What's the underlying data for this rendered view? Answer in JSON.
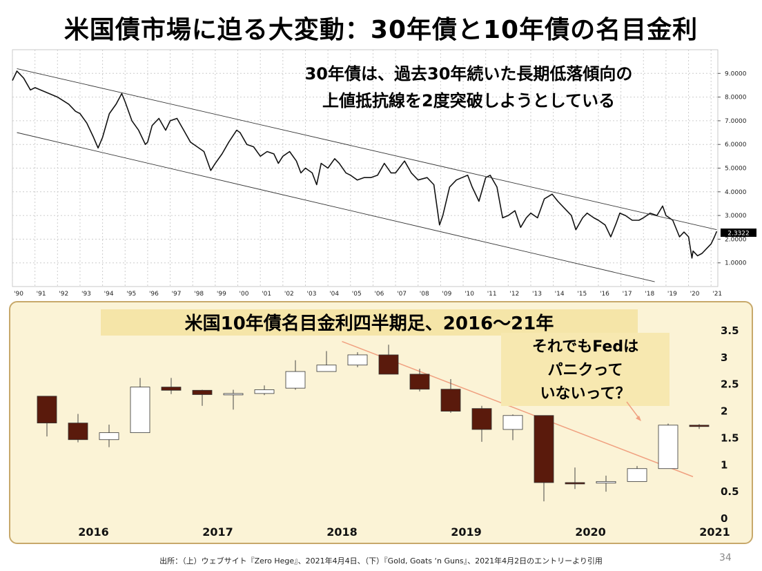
{
  "slide": {
    "title": "米国債市場に迫る大変動：30年債と10年債の名目金利",
    "footer": "出所：（上）ウェブサイト『Zero Hege』、2021年4月4日、（下）『Gold, Goats ‘n Guns』、2021年4月2日のエントリーより引用",
    "page_number": "34",
    "colors": {
      "bear": "#5a1a0c",
      "bull": "#ffffff",
      "panel_bg": "#fbf3d6",
      "panel_border": "#c7a86a",
      "trend": "#f0a080",
      "note_bg": "#f7e8b0",
      "label_bg": "#000000"
    }
  },
  "chart_data": [
    {
      "type": "line",
      "annotation": [
        "30年債は、過去30年続いた長期低落傾向の",
        "上値抵抗線を2度突破しようとしている"
      ],
      "x_ticks": [
        "'90",
        "'91",
        "'92",
        "'93",
        "'94",
        "'95",
        "'96",
        "'97",
        "'98",
        "'99",
        "'00",
        "'01",
        "'02",
        "'03",
        "'04",
        "'05",
        "'06",
        "'07",
        "'08",
        "'09",
        "'10",
        "'11",
        "'12",
        "'13",
        "'14",
        "'15",
        "'16",
        "'17",
        "'18",
        "'19",
        "'20",
        "'21"
      ],
      "y_ticks": [
        "1.0000",
        "2.0000",
        "3.0000",
        "4.0000",
        "5.0000",
        "6.0000",
        "7.0000",
        "8.0000",
        "9.0000"
      ],
      "ylim": [
        0,
        10
      ],
      "xlim": [
        1990.0,
        2021.3
      ],
      "last_value_label": "2.3322",
      "series": [
        {
          "points": [
            [
              1990.0,
              8.7
            ],
            [
              1990.2,
              9.1
            ],
            [
              1990.5,
              8.8
            ],
            [
              1990.8,
              8.3
            ],
            [
              1991.0,
              8.4
            ],
            [
              1991.5,
              8.2
            ],
            [
              1992.0,
              8.0
            ],
            [
              1992.5,
              7.7
            ],
            [
              1992.8,
              7.4
            ],
            [
              1993.0,
              7.3
            ],
            [
              1993.3,
              6.9
            ],
            [
              1993.6,
              6.3
            ],
            [
              1993.8,
              5.85
            ],
            [
              1994.0,
              6.3
            ],
            [
              1994.3,
              7.3
            ],
            [
              1994.6,
              7.7
            ],
            [
              1994.85,
              8.15
            ],
            [
              1995.0,
              7.8
            ],
            [
              1995.3,
              7.0
            ],
            [
              1995.6,
              6.6
            ],
            [
              1995.9,
              6.0
            ],
            [
              1996.0,
              6.1
            ],
            [
              1996.2,
              6.8
            ],
            [
              1996.5,
              7.1
            ],
            [
              1996.8,
              6.6
            ],
            [
              1997.0,
              7.0
            ],
            [
              1997.3,
              7.1
            ],
            [
              1997.6,
              6.6
            ],
            [
              1997.9,
              6.1
            ],
            [
              1998.2,
              5.9
            ],
            [
              1998.5,
              5.7
            ],
            [
              1998.8,
              4.9
            ],
            [
              1999.0,
              5.2
            ],
            [
              1999.3,
              5.6
            ],
            [
              1999.6,
              6.1
            ],
            [
              1999.95,
              6.6
            ],
            [
              2000.1,
              6.5
            ],
            [
              2000.4,
              6.0
            ],
            [
              2000.7,
              5.9
            ],
            [
              2001.0,
              5.5
            ],
            [
              2001.3,
              5.7
            ],
            [
              2001.6,
              5.6
            ],
            [
              2001.8,
              5.2
            ],
            [
              2002.0,
              5.5
            ],
            [
              2002.3,
              5.7
            ],
            [
              2002.6,
              5.3
            ],
            [
              2002.8,
              4.8
            ],
            [
              2003.0,
              5.0
            ],
            [
              2003.3,
              4.8
            ],
            [
              2003.5,
              4.3
            ],
            [
              2003.7,
              5.2
            ],
            [
              2004.0,
              5.0
            ],
            [
              2004.3,
              5.4
            ],
            [
              2004.5,
              5.2
            ],
            [
              2004.8,
              4.8
            ],
            [
              2005.0,
              4.7
            ],
            [
              2005.3,
              4.5
            ],
            [
              2005.6,
              4.6
            ],
            [
              2005.9,
              4.6
            ],
            [
              2006.2,
              4.7
            ],
            [
              2006.5,
              5.2
            ],
            [
              2006.8,
              4.8
            ],
            [
              2007.0,
              4.8
            ],
            [
              2007.4,
              5.3
            ],
            [
              2007.7,
              4.8
            ],
            [
              2008.0,
              4.5
            ],
            [
              2008.4,
              4.6
            ],
            [
              2008.7,
              4.3
            ],
            [
              2008.95,
              2.6
            ],
            [
              2009.1,
              3.0
            ],
            [
              2009.4,
              4.2
            ],
            [
              2009.7,
              4.5
            ],
            [
              2009.95,
              4.6
            ],
            [
              2010.2,
              4.7
            ],
            [
              2010.4,
              4.2
            ],
            [
              2010.7,
              3.6
            ],
            [
              2011.0,
              4.6
            ],
            [
              2011.2,
              4.7
            ],
            [
              2011.5,
              4.2
            ],
            [
              2011.75,
              2.9
            ],
            [
              2012.0,
              3.0
            ],
            [
              2012.3,
              3.2
            ],
            [
              2012.55,
              2.5
            ],
            [
              2012.8,
              2.9
            ],
            [
              2013.0,
              3.1
            ],
            [
              2013.3,
              2.9
            ],
            [
              2013.6,
              3.7
            ],
            [
              2013.95,
              3.9
            ],
            [
              2014.2,
              3.6
            ],
            [
              2014.5,
              3.3
            ],
            [
              2014.8,
              3.0
            ],
            [
              2015.0,
              2.4
            ],
            [
              2015.3,
              2.9
            ],
            [
              2015.5,
              3.1
            ],
            [
              2015.8,
              2.9
            ],
            [
              2016.0,
              2.8
            ],
            [
              2016.3,
              2.6
            ],
            [
              2016.55,
              2.1
            ],
            [
              2016.8,
              2.7
            ],
            [
              2016.95,
              3.1
            ],
            [
              2017.2,
              3.0
            ],
            [
              2017.5,
              2.8
            ],
            [
              2017.8,
              2.8
            ],
            [
              2018.0,
              2.9
            ],
            [
              2018.3,
              3.1
            ],
            [
              2018.6,
              3.0
            ],
            [
              2018.85,
              3.4
            ],
            [
              2019.0,
              3.0
            ],
            [
              2019.3,
              2.8
            ],
            [
              2019.6,
              2.1
            ],
            [
              2019.8,
              2.3
            ],
            [
              2020.0,
              2.1
            ],
            [
              2020.15,
              1.2
            ],
            [
              2020.2,
              1.5
            ],
            [
              2020.4,
              1.3
            ],
            [
              2020.6,
              1.4
            ],
            [
              2020.8,
              1.6
            ],
            [
              2021.0,
              1.8
            ],
            [
              2021.15,
              2.1
            ],
            [
              2021.25,
              2.33
            ]
          ]
        },
        {
          "points": [
            [
              1990.2,
              9.2
            ],
            [
              2021.25,
              2.4
            ]
          ]
        },
        {
          "points": [
            [
              1990.2,
              6.5
            ],
            [
              2018.5,
              0.2
            ]
          ]
        }
      ]
    },
    {
      "type": "candlestick",
      "title": "米国10年債名目金利四半期足、2016～21年",
      "note": [
        "それでもFedは",
        "パニクって",
        "いないって？"
      ],
      "x_labels": [
        "2016",
        "2017",
        "2018",
        "2019",
        "2020",
        "2021"
      ],
      "y_ticks": [
        "0",
        "0.5",
        "1",
        "1.5",
        "2",
        "2.5",
        "3",
        "3.5"
      ],
      "ylim": [
        0,
        3.5
      ],
      "candles": [
        {
          "q": "2016Q1",
          "open": 2.28,
          "high": 2.28,
          "low": 1.53,
          "close": 1.78
        },
        {
          "q": "2016Q2",
          "open": 1.78,
          "high": 1.95,
          "low": 1.42,
          "close": 1.47
        },
        {
          "q": "2016Q3",
          "open": 1.47,
          "high": 1.75,
          "low": 1.33,
          "close": 1.6
        },
        {
          "q": "2016Q4",
          "open": 1.6,
          "high": 2.62,
          "low": 1.6,
          "close": 2.45
        },
        {
          "q": "2017Q1",
          "open": 2.45,
          "high": 2.62,
          "low": 2.32,
          "close": 2.39
        },
        {
          "q": "2017Q2",
          "open": 2.39,
          "high": 2.4,
          "low": 2.1,
          "close": 2.31
        },
        {
          "q": "2017Q3",
          "open": 2.31,
          "high": 2.4,
          "low": 2.03,
          "close": 2.33
        },
        {
          "q": "2017Q4",
          "open": 2.33,
          "high": 2.48,
          "low": 2.3,
          "close": 2.4
        },
        {
          "q": "2018Q1",
          "open": 2.43,
          "high": 2.95,
          "low": 2.4,
          "close": 2.74
        },
        {
          "q": "2018Q2",
          "open": 2.74,
          "high": 3.12,
          "low": 2.74,
          "close": 2.86
        },
        {
          "q": "2018Q3",
          "open": 2.86,
          "high": 3.1,
          "low": 2.82,
          "close": 3.05
        },
        {
          "q": "2018Q4",
          "open": 3.05,
          "high": 3.24,
          "low": 2.69,
          "close": 2.69
        },
        {
          "q": "2019Q1",
          "open": 2.69,
          "high": 2.79,
          "low": 2.37,
          "close": 2.41
        },
        {
          "q": "2019Q2",
          "open": 2.41,
          "high": 2.6,
          "low": 1.97,
          "close": 2.0
        },
        {
          "q": "2019Q3",
          "open": 2.05,
          "high": 2.1,
          "low": 1.43,
          "close": 1.66
        },
        {
          "q": "2019Q4",
          "open": 1.66,
          "high": 1.94,
          "low": 1.46,
          "close": 1.92
        },
        {
          "q": "2020Q1",
          "open": 1.92,
          "high": 1.92,
          "low": 0.32,
          "close": 0.67
        },
        {
          "q": "2020Q2",
          "open": 0.67,
          "high": 0.95,
          "low": 0.55,
          "close": 0.66
        },
        {
          "q": "2020Q3",
          "open": 0.66,
          "high": 0.8,
          "low": 0.5,
          "close": 0.69
        },
        {
          "q": "2020Q4",
          "open": 0.69,
          "high": 0.98,
          "low": 0.69,
          "close": 0.93
        },
        {
          "q": "2021Q1",
          "open": 0.93,
          "high": 1.77,
          "low": 0.93,
          "close": 1.74
        },
        {
          "q": "2021Q2",
          "open": 1.74,
          "high": 1.76,
          "low": 1.67,
          "close": 1.72
        }
      ],
      "trendline": [
        [
          2018.375,
          3.3
        ],
        [
          2021.2,
          0.78
        ]
      ]
    }
  ]
}
